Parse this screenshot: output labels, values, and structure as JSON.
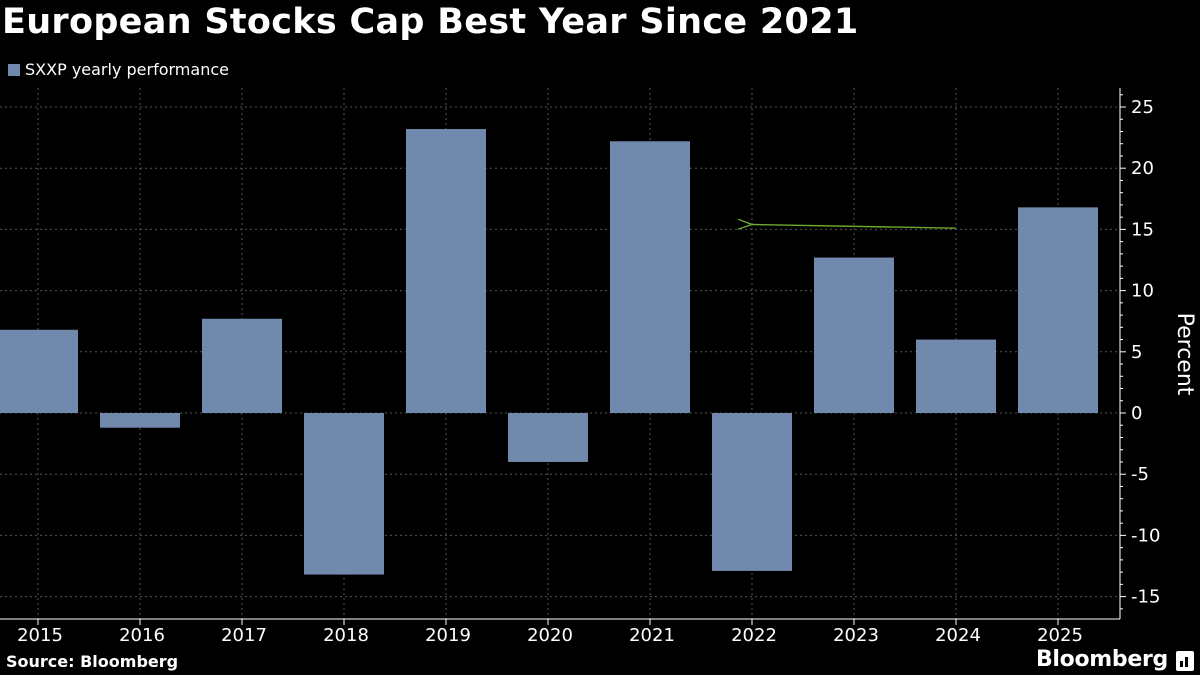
{
  "header": {
    "title": "European Stocks Cap Best Year Since 2021"
  },
  "footer": {
    "source": "Source: Bloomberg",
    "brand": "Bloomberg"
  },
  "colors": {
    "bar": "#7189AD",
    "arrow": "#6FA82E",
    "background": "#000000",
    "text": "#FFFFFF",
    "grid": "#555555"
  },
  "icons": [
    "bloomberg-chart-icon"
  ],
  "chart_data": {
    "type": "bar",
    "title": "European Stocks Cap Best Year Since 2021",
    "ylabel": "Percent",
    "xlabel": "",
    "ylim": [
      -17,
      27
    ],
    "yticks": [
      25,
      20,
      15,
      10,
      5,
      0,
      -5,
      -10,
      -15
    ],
    "y_axis_side": "right",
    "grid": true,
    "legend_position": "top-left",
    "categories": [
      "2015",
      "2016",
      "2017",
      "2018",
      "2019",
      "2020",
      "2021",
      "2022",
      "2023",
      "2024",
      "2025"
    ],
    "series": [
      {
        "name": "SXXP yearly performance",
        "values": [
          6.8,
          -1.2,
          7.7,
          -13.2,
          23.2,
          -4.0,
          22.2,
          -12.9,
          12.7,
          6.0,
          16.8
        ]
      }
    ],
    "annotations": [
      {
        "type": "arrow",
        "from": {
          "x": "2024",
          "y": 15.1
        },
        "to": {
          "x": "2022",
          "y": 15.4
        }
      }
    ]
  }
}
